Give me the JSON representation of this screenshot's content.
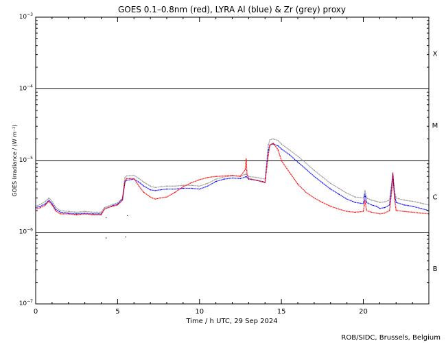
{
  "chart_data": {
    "type": "line",
    "title": "GOES 0.1–0.8nm (red), LYRA Al (blue) & Zr (grey) proxy",
    "xlabel": "Time / h UTC, 29 Sep 2024",
    "ylabel": "GOES Irradiance / (W m⁻²)",
    "xlim": [
      0,
      24
    ],
    "ylim": [
      1e-07,
      0.001
    ],
    "yscale": "log",
    "x_ticks": [
      {
        "value": 0,
        "label": "0"
      },
      {
        "value": 5,
        "label": "5"
      },
      {
        "value": 10,
        "label": "10"
      },
      {
        "value": 15,
        "label": "15"
      },
      {
        "value": 20,
        "label": "20"
      }
    ],
    "y_ticks": [
      {
        "value": 0.001,
        "base": "10",
        "exp": "−3"
      },
      {
        "value": 0.0001,
        "base": "10",
        "exp": "−4"
      },
      {
        "value": 1e-05,
        "base": "10",
        "exp": "−5"
      },
      {
        "value": 1e-06,
        "base": "10",
        "exp": "−6"
      },
      {
        "value": 1e-07,
        "base": "10",
        "exp": "−7"
      }
    ],
    "class_lines": [
      0.0001,
      1e-05,
      1e-06
    ],
    "class_labels": [
      {
        "label": "X",
        "value": 0.000316
      },
      {
        "label": "M",
        "value": 3.16e-05
      },
      {
        "label": "C",
        "value": 3.16e-06
      },
      {
        "label": "B",
        "value": 3.16e-07
      }
    ],
    "series": [
      {
        "color": "#ff0000",
        "x": [
          0.0,
          0.3,
          0.6,
          0.8,
          1.0,
          1.2,
          1.5,
          2.0,
          2.5,
          3.0,
          3.5,
          4.0,
          4.2,
          4.4,
          4.7,
          5.0,
          5.3,
          5.45,
          5.55,
          6.0,
          6.3,
          6.6,
          7.0,
          7.3,
          7.6,
          8.0,
          8.5,
          9.0,
          9.5,
          10.0,
          10.5,
          11.0,
          11.5,
          12.0,
          12.5,
          12.8,
          12.85,
          12.9,
          13.0,
          13.5,
          14.0,
          14.2,
          14.3,
          14.5,
          14.8,
          15.0,
          15.5,
          16.0,
          16.5,
          17.0,
          17.5,
          18.0,
          18.5,
          19.0,
          19.5,
          20.0,
          20.1,
          20.2,
          20.5,
          20.8,
          21.0,
          21.3,
          21.6,
          21.75,
          21.8,
          21.9,
          22.0,
          22.5,
          23.0,
          23.5,
          24.0
        ],
        "y": [
          2.1e-06,
          2.2e-06,
          2.4e-06,
          2.7e-06,
          2.4e-06,
          2e-06,
          1.8e-06,
          1.8e-06,
          1.75e-06,
          1.8e-06,
          1.75e-06,
          1.75e-06,
          2.1e-06,
          2.2e-06,
          2.3e-06,
          2.4e-06,
          2.8e-06,
          5.2e-06,
          5.6e-06,
          5.6e-06,
          4.4e-06,
          3.6e-06,
          3.1e-06,
          2.9e-06,
          3e-06,
          3.1e-06,
          3.6e-06,
          4.3e-06,
          4.9e-06,
          5.4e-06,
          5.8e-06,
          6e-06,
          6.1e-06,
          6.2e-06,
          6e-06,
          7.5e-06,
          1.05e-05,
          6.5e-06,
          5.6e-06,
          5.3e-06,
          4.9e-06,
          1.2e-05,
          1.65e-05,
          1.75e-05,
          1.4e-05,
          1e-05,
          6.8e-06,
          4.7e-06,
          3.6e-06,
          3e-06,
          2.6e-06,
          2.3e-06,
          2.1e-06,
          1.95e-06,
          1.9e-06,
          1.95e-06,
          2.8e-06,
          2e-06,
          1.9e-06,
          1.85e-06,
          1.8e-06,
          1.85e-06,
          2e-06,
          4e-06,
          6.6e-06,
          3e-06,
          2e-06,
          1.95e-06,
          1.9e-06,
          1.85e-06,
          1.8e-06
        ]
      },
      {
        "color": "#0000ff",
        "x": [
          0.0,
          0.3,
          0.6,
          0.8,
          1.0,
          1.2,
          1.5,
          2.0,
          2.5,
          3.0,
          3.5,
          4.0,
          4.2,
          4.4,
          4.7,
          5.0,
          5.3,
          5.45,
          5.55,
          6.0,
          6.3,
          6.6,
          7.0,
          7.3,
          7.6,
          8.0,
          8.5,
          9.0,
          9.5,
          10.0,
          10.5,
          11.0,
          11.5,
          12.0,
          12.5,
          12.8,
          12.85,
          12.9,
          13.0,
          13.5,
          14.0,
          14.2,
          14.3,
          14.5,
          14.8,
          15.0,
          15.5,
          16.0,
          16.5,
          17.0,
          17.5,
          18.0,
          18.5,
          19.0,
          19.5,
          20.0,
          20.1,
          20.2,
          20.5,
          20.8,
          21.0,
          21.3,
          21.6,
          21.75,
          21.8,
          21.9,
          22.0,
          22.5,
          23.0,
          23.5,
          24.0
        ],
        "y": [
          2.2e-06,
          2.3e-06,
          2.5e-06,
          2.8e-06,
          2.5e-06,
          2.1e-06,
          1.9e-06,
          1.85e-06,
          1.8e-06,
          1.85e-06,
          1.8e-06,
          1.8e-06,
          2.1e-06,
          2.2e-06,
          2.35e-06,
          2.45e-06,
          2.9e-06,
          5e-06,
          5.3e-06,
          5.5e-06,
          5e-06,
          4.4e-06,
          3.9e-06,
          3.8e-06,
          3.9e-06,
          4e-06,
          4e-06,
          4.1e-06,
          4.1e-06,
          4e-06,
          4.4e-06,
          5.1e-06,
          5.5e-06,
          5.7e-06,
          5.6e-06,
          5.9e-06,
          6e-06,
          5.8e-06,
          5.5e-06,
          5.3e-06,
          5e-06,
          1.4e-05,
          1.65e-05,
          1.7e-05,
          1.6e-05,
          1.45e-05,
          1.2e-05,
          9.5e-06,
          7.6e-06,
          6e-06,
          4.9e-06,
          4e-06,
          3.4e-06,
          2.9e-06,
          2.6e-06,
          2.5e-06,
          3.4e-06,
          2.6e-06,
          2.4e-06,
          2.3e-06,
          2.15e-06,
          2.2e-06,
          2.4e-06,
          4.8e-06,
          6.5e-06,
          3.4e-06,
          2.6e-06,
          2.4e-06,
          2.3e-06,
          2.15e-06,
          2e-06
        ]
      },
      {
        "color": "#909090",
        "x": [
          0.0,
          0.3,
          0.6,
          0.8,
          1.0,
          1.2,
          1.5,
          2.0,
          2.5,
          3.0,
          3.5,
          4.0,
          4.2,
          4.4,
          4.7,
          5.0,
          5.3,
          5.45,
          5.55,
          6.0,
          6.3,
          6.6,
          7.0,
          7.3,
          7.6,
          8.0,
          8.5,
          9.0,
          9.5,
          10.0,
          10.5,
          11.0,
          11.5,
          12.0,
          12.5,
          12.8,
          12.85,
          12.9,
          13.0,
          13.5,
          14.0,
          14.2,
          14.3,
          14.5,
          14.8,
          15.0,
          15.5,
          16.0,
          16.5,
          17.0,
          17.5,
          18.0,
          18.5,
          19.0,
          19.5,
          20.0,
          20.1,
          20.2,
          20.5,
          20.8,
          21.0,
          21.3,
          21.6,
          21.75,
          21.8,
          21.9,
          22.0,
          22.5,
          23.0,
          23.5,
          24.0
        ],
        "y": [
          2.3e-06,
          2.45e-06,
          2.7e-06,
          3e-06,
          2.7e-06,
          2.25e-06,
          2e-06,
          1.95e-06,
          1.9e-06,
          1.95e-06,
          1.9e-06,
          1.9e-06,
          2.2e-06,
          2.3e-06,
          2.45e-06,
          2.55e-06,
          3e-06,
          5.8e-06,
          6.1e-06,
          6.2e-06,
          5.6e-06,
          5e-06,
          4.4e-06,
          4.2e-06,
          4.3e-06,
          4.4e-06,
          4.4e-06,
          4.5e-06,
          4.5e-06,
          4.4e-06,
          4.8e-06,
          5.5e-06,
          5.9e-06,
          6.1e-06,
          6.1e-06,
          6.4e-06,
          6.5e-06,
          6.3e-06,
          6e-06,
          5.8e-06,
          5.5e-06,
          1.65e-05,
          1.95e-05,
          2e-05,
          1.9e-05,
          1.7e-05,
          1.4e-05,
          1.15e-05,
          9.2e-06,
          7.3e-06,
          5.9e-06,
          4.8e-06,
          4.1e-06,
          3.5e-06,
          3.1e-06,
          3e-06,
          3.8e-06,
          3e-06,
          2.8e-06,
          2.7e-06,
          2.6e-06,
          2.65e-06,
          2.8e-06,
          5.2e-06,
          6.8e-06,
          3.8e-06,
          3e-06,
          2.8e-06,
          2.7e-06,
          2.55e-06,
          2.4e-06
        ]
      }
    ],
    "stray_points": [
      {
        "x": 4.3,
        "y": 1.6e-06
      },
      {
        "x": 5.6,
        "y": 1.7e-06
      },
      {
        "x": 4.3,
        "y": 8.3e-07
      },
      {
        "x": 5.5,
        "y": 8.6e-07
      }
    ]
  },
  "credit": "ROB/SIDC, Brussels, Belgium"
}
